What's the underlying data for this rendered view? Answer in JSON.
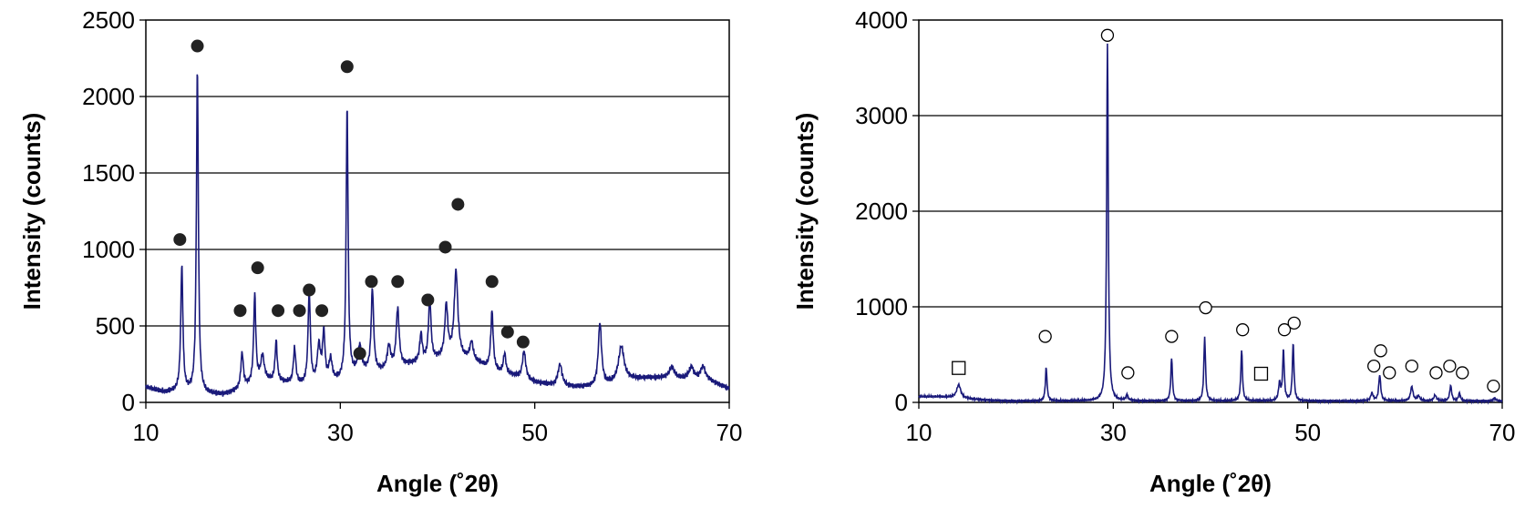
{
  "chart_data": [
    {
      "type": "line",
      "xlabel": "Angle (˚2θ)",
      "ylabel": "Intensity (counts)",
      "xlim": [
        10,
        70
      ],
      "ylim": [
        0,
        2500
      ],
      "x_ticks": [
        10,
        30,
        50,
        70
      ],
      "y_ticks": [
        0,
        500,
        1000,
        1500,
        2000,
        2500
      ],
      "grid": "horizontal",
      "line_color": "#1a1a7a",
      "baseline": [
        [
          10,
          100
        ],
        [
          11,
          80
        ],
        [
          12,
          65
        ],
        [
          13,
          70
        ],
        [
          16,
          55
        ],
        [
          18,
          50
        ],
        [
          19.5,
          80
        ],
        [
          22,
          150
        ],
        [
          24,
          130
        ],
        [
          26,
          110
        ],
        [
          29,
          120
        ],
        [
          30,
          140
        ],
        [
          32,
          200
        ],
        [
          34,
          200
        ],
        [
          36,
          230
        ],
        [
          38,
          260
        ],
        [
          40,
          280
        ],
        [
          42,
          300
        ],
        [
          44,
          260
        ],
        [
          46,
          200
        ],
        [
          48,
          170
        ],
        [
          50,
          130
        ],
        [
          52,
          110
        ],
        [
          54,
          100
        ],
        [
          56,
          100
        ],
        [
          58,
          120
        ],
        [
          60,
          150
        ],
        [
          62,
          160
        ],
        [
          64,
          160
        ],
        [
          66,
          150
        ],
        [
          68,
          140
        ],
        [
          70,
          90
        ]
      ],
      "peaks": [
        {
          "x": 13.7,
          "height": 830,
          "width": 0.13
        },
        {
          "x": 15.3,
          "height": 2120,
          "width": 0.12
        },
        {
          "x": 19.9,
          "height": 230,
          "width": 0.15
        },
        {
          "x": 21.2,
          "height": 570,
          "width": 0.13
        },
        {
          "x": 22.0,
          "height": 150,
          "width": 0.2
        },
        {
          "x": 23.4,
          "height": 260,
          "width": 0.13
        },
        {
          "x": 25.3,
          "height": 230,
          "width": 0.15
        },
        {
          "x": 26.8,
          "height": 600,
          "width": 0.14
        },
        {
          "x": 27.8,
          "height": 240,
          "width": 0.2
        },
        {
          "x": 28.3,
          "height": 320,
          "width": 0.15
        },
        {
          "x": 29.0,
          "height": 150,
          "width": 0.2
        },
        {
          "x": 30.7,
          "height": 1770,
          "width": 0.12
        },
        {
          "x": 32.0,
          "height": 160,
          "width": 0.2
        },
        {
          "x": 33.3,
          "height": 540,
          "width": 0.15
        },
        {
          "x": 35.0,
          "height": 150,
          "width": 0.2
        },
        {
          "x": 35.9,
          "height": 380,
          "width": 0.18
        },
        {
          "x": 38.3,
          "height": 180,
          "width": 0.15
        },
        {
          "x": 39.2,
          "height": 410,
          "width": 0.15
        },
        {
          "x": 40.9,
          "height": 340,
          "width": 0.18
        },
        {
          "x": 41.9,
          "height": 550,
          "width": 0.22
        },
        {
          "x": 43.5,
          "height": 120,
          "width": 0.2
        },
        {
          "x": 45.6,
          "height": 380,
          "width": 0.15
        },
        {
          "x": 46.9,
          "height": 130,
          "width": 0.15
        },
        {
          "x": 48.9,
          "height": 180,
          "width": 0.2
        },
        {
          "x": 52.6,
          "height": 140,
          "width": 0.25
        },
        {
          "x": 56.7,
          "height": 410,
          "width": 0.2
        },
        {
          "x": 58.9,
          "height": 230,
          "width": 0.35
        },
        {
          "x": 64.1,
          "height": 70,
          "width": 0.3
        },
        {
          "x": 66.1,
          "height": 80,
          "width": 0.3
        },
        {
          "x": 67.3,
          "height": 90,
          "width": 0.3
        }
      ],
      "markers": {
        "shape": "filled-circle",
        "points": [
          [
            13.5,
            1065
          ],
          [
            15.3,
            2330
          ],
          [
            19.7,
            600
          ],
          [
            21.5,
            880
          ],
          [
            23.6,
            600
          ],
          [
            25.8,
            600
          ],
          [
            26.8,
            735
          ],
          [
            28.1,
            600
          ],
          [
            30.7,
            2195
          ],
          [
            32.0,
            320
          ],
          [
            33.2,
            790
          ],
          [
            35.9,
            790
          ],
          [
            39.0,
            670
          ],
          [
            40.8,
            1015
          ],
          [
            42.1,
            1295
          ],
          [
            45.6,
            790
          ],
          [
            47.2,
            460
          ],
          [
            48.8,
            395
          ]
        ]
      }
    },
    {
      "type": "line",
      "xlabel": "Angle (˚2θ)",
      "ylabel": "Intensity (counts)",
      "xlim": [
        10,
        70
      ],
      "ylim": [
        0,
        4000
      ],
      "x_ticks": [
        10,
        30,
        50,
        70
      ],
      "y_ticks": [
        0,
        1000,
        2000,
        3000,
        4000
      ],
      "grid": "horizontal",
      "line_color": "#1a1a7a",
      "baseline": [
        [
          10,
          60
        ],
        [
          12,
          60
        ],
        [
          13.5,
          50
        ],
        [
          16,
          30
        ],
        [
          18,
          20
        ],
        [
          20,
          15
        ],
        [
          70,
          15
        ]
      ],
      "peaks": [
        {
          "x": 14.1,
          "height": 140,
          "width": 0.25
        },
        {
          "x": 23.1,
          "height": 350,
          "width": 0.1
        },
        {
          "x": 29.4,
          "height": 3740,
          "width": 0.1
        },
        {
          "x": 31.4,
          "height": 60,
          "width": 0.12
        },
        {
          "x": 36.0,
          "height": 450,
          "width": 0.1
        },
        {
          "x": 39.4,
          "height": 670,
          "width": 0.1
        },
        {
          "x": 43.2,
          "height": 530,
          "width": 0.1
        },
        {
          "x": 47.1,
          "height": 180,
          "width": 0.12
        },
        {
          "x": 47.5,
          "height": 530,
          "width": 0.1
        },
        {
          "x": 48.5,
          "height": 600,
          "width": 0.1
        },
        {
          "x": 56.6,
          "height": 80,
          "width": 0.15
        },
        {
          "x": 57.4,
          "height": 270,
          "width": 0.12
        },
        {
          "x": 60.7,
          "height": 150,
          "width": 0.15
        },
        {
          "x": 61.4,
          "height": 50,
          "width": 0.15
        },
        {
          "x": 63.1,
          "height": 60,
          "width": 0.15
        },
        {
          "x": 64.7,
          "height": 160,
          "width": 0.12
        },
        {
          "x": 65.6,
          "height": 80,
          "width": 0.12
        },
        {
          "x": 69.2,
          "height": 30,
          "width": 0.15
        }
      ],
      "markers": {
        "shape": "open-circle",
        "points": [
          [
            23.0,
            690
          ],
          [
            29.4,
            3840
          ],
          [
            31.5,
            310
          ],
          [
            36.0,
            690
          ],
          [
            39.5,
            990
          ],
          [
            43.3,
            760
          ],
          [
            47.6,
            760
          ],
          [
            48.6,
            830
          ],
          [
            56.8,
            380
          ],
          [
            57.5,
            540
          ],
          [
            58.4,
            310
          ],
          [
            60.7,
            380
          ],
          [
            63.2,
            310
          ],
          [
            64.6,
            380
          ],
          [
            65.9,
            310
          ],
          [
            69.1,
            170
          ]
        ]
      },
      "markers_secondary": {
        "shape": "open-square",
        "points": [
          [
            14.1,
            360
          ],
          [
            45.2,
            300
          ]
        ]
      }
    }
  ]
}
